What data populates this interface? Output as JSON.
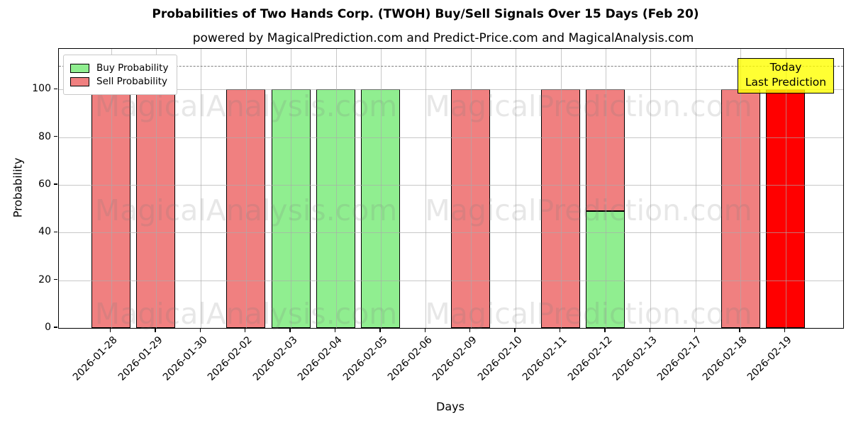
{
  "title": "Probabilities of Two Hands Corp. (TWOH) Buy/Sell Signals Over 15 Days (Feb 20)",
  "subtitle": "powered by MagicalPrediction.com and Predict-Price.com and MagicalAnalysis.com",
  "xlabel": "Days",
  "ylabel": "Probability",
  "legend": {
    "buy_label": "Buy Probability",
    "sell_label": "Sell Probability"
  },
  "today_box": {
    "line1": "Today",
    "line2": "Last Prediction"
  },
  "watermarks": {
    "left_text": "MagicalAnalysis.com",
    "right_text": "MagicalPrediction.com"
  },
  "colors": {
    "buy": "#90ee90",
    "sell": "#f08080",
    "today_sell": "#ff0000",
    "bar_edge": "#000000",
    "grid": "#aaaaaa",
    "dashed_line": "#7f7f7f",
    "today_box_bg": "rgba(255,255,0,0.8)"
  },
  "chart_data": {
    "type": "bar",
    "stacked": true,
    "title": "Probabilities of Two Hands Corp. (TWOH) Buy/Sell Signals Over 15 Days (Feb 20)",
    "xlabel": "Days",
    "ylabel": "Probability",
    "categories": [
      "2026-01-28",
      "2026-01-29",
      "2026-01-30",
      "2026-02-02",
      "2026-02-03",
      "2026-02-04",
      "2026-02-05",
      "2026-02-06",
      "2026-02-09",
      "2026-02-10",
      "2026-02-11",
      "2026-02-12",
      "2026-02-13",
      "2026-02-17",
      "2026-02-18",
      "2026-02-19"
    ],
    "series": [
      {
        "name": "Buy Probability",
        "color": "#90ee90",
        "values": [
          0,
          0,
          0,
          0,
          100,
          100,
          100,
          0,
          0,
          0,
          0,
          49,
          0,
          0,
          0,
          0
        ]
      },
      {
        "name": "Sell Probability",
        "color": "#f08080",
        "values": [
          100,
          100,
          0,
          100,
          0,
          0,
          0,
          0,
          100,
          0,
          100,
          51,
          0,
          0,
          100,
          100
        ]
      }
    ],
    "today_index": 15,
    "today_sell_color": "#ff0000",
    "yticks": [
      0,
      20,
      40,
      60,
      80,
      100
    ],
    "ylim": [
      0,
      117
    ],
    "dashed_line_y": 110,
    "grid": true,
    "legend_position": "upper-left"
  }
}
